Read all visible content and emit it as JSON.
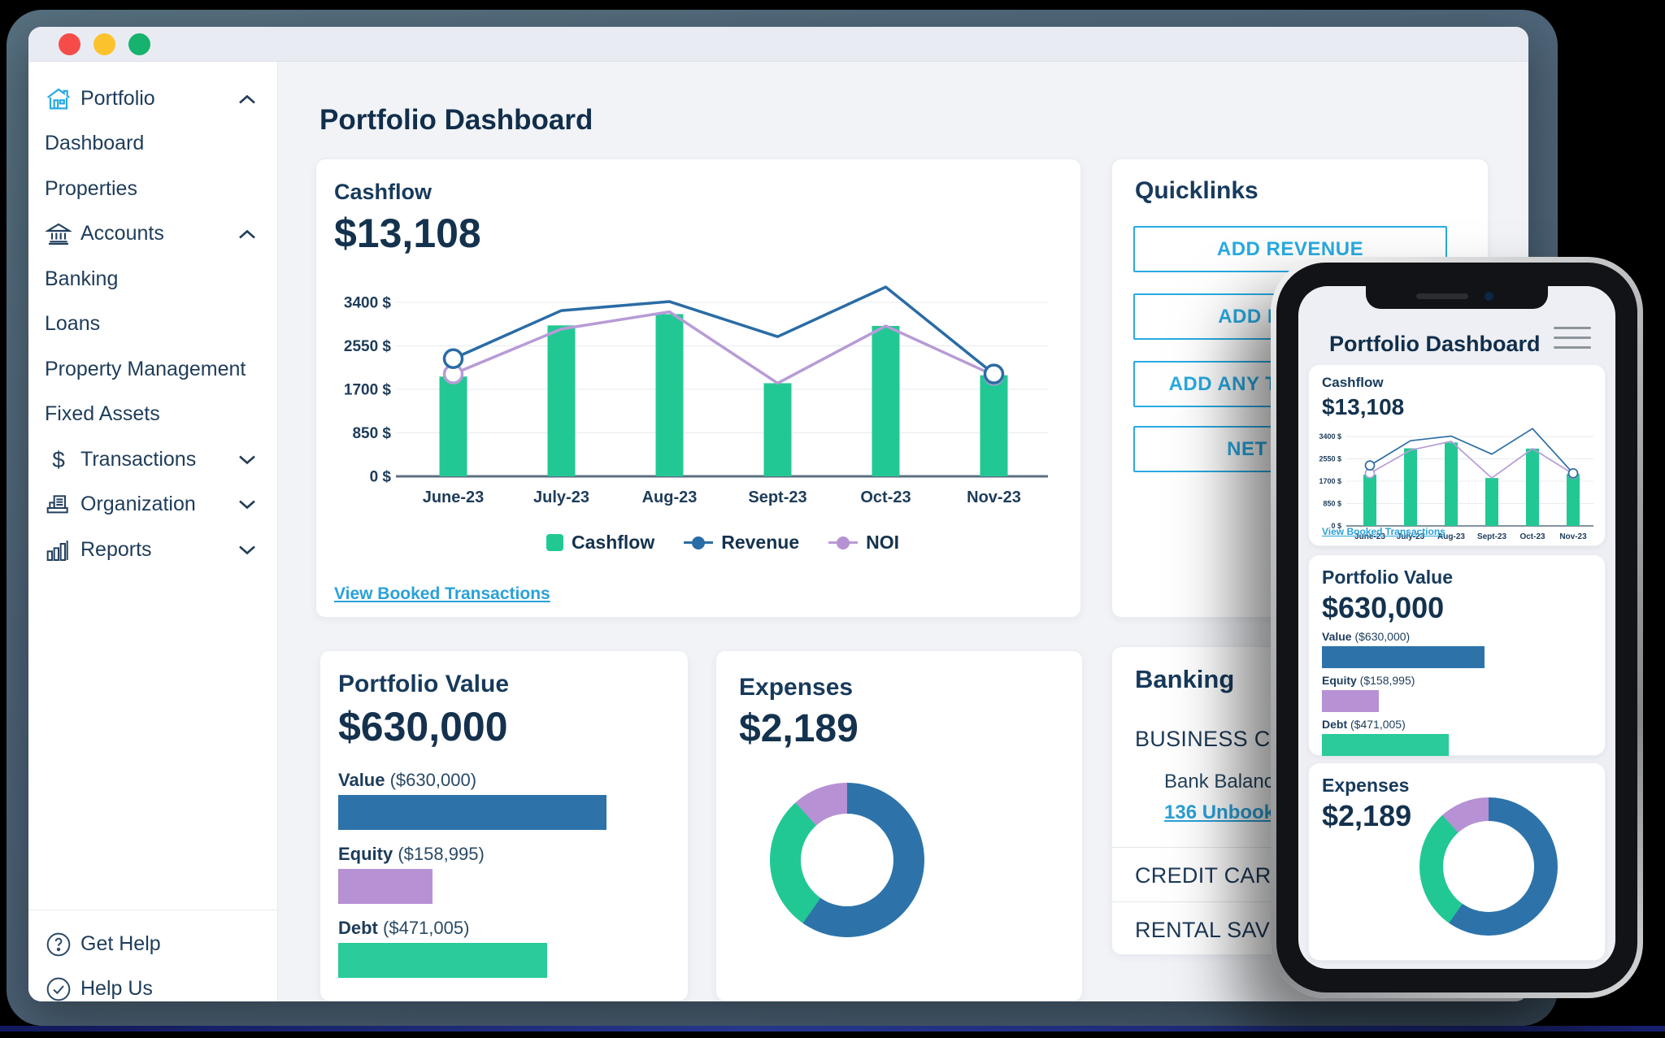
{
  "colors": {
    "cyan": "#29abe2",
    "link": "#2aa1d8",
    "green": "#22c894",
    "blue": "#2d73aa",
    "purple": "#b691d3",
    "line_blue": "#2a6ca5",
    "line_purple": "#b79bd6",
    "navy": "#1d3c5b",
    "heading": "#122f4c",
    "slate_frame": "#4d6377"
  },
  "window": {
    "traffic_lights": {
      "close": "#f64c49",
      "minimize": "#fcc22d",
      "zoom": "#17b26d"
    }
  },
  "sidebar": {
    "items": [
      {
        "label": "Portfolio",
        "icon": "house-icon",
        "chevron": "up"
      },
      {
        "label": "Dashboard"
      },
      {
        "label": "Properties"
      },
      {
        "label": "Accounts",
        "icon": "bank-icon",
        "chevron": "up"
      },
      {
        "label": "Banking"
      },
      {
        "label": "Loans"
      },
      {
        "label": "Property Management"
      },
      {
        "label": "Fixed Assets"
      },
      {
        "label": "Transactions",
        "icon": "dollar-icon",
        "chevron": "down"
      },
      {
        "label": "Organization",
        "icon": "organization-icon",
        "chevron": "down"
      },
      {
        "label": "Reports",
        "icon": "bar-chart-icon",
        "chevron": "down"
      }
    ],
    "footer": [
      {
        "label": "Get Help",
        "icon": "question-circle-icon"
      },
      {
        "label": "Help Us",
        "icon": "check-circle-icon"
      }
    ]
  },
  "page_title": "Portfolio Dashboard",
  "cashflow": {
    "title": "Cashflow",
    "value": "$13,108",
    "link": "View Booked Transactions",
    "legend": [
      {
        "label": "Cashflow"
      },
      {
        "label": "Revenue"
      },
      {
        "label": "NOI"
      }
    ]
  },
  "quicklinks": {
    "title": "Quicklinks",
    "buttons": [
      {
        "label": "ADD REVENUE"
      },
      {
        "label": "ADD EXPENSE"
      },
      {
        "label": "ADD ANY TRANSACTION"
      },
      {
        "label": "NET INCOME"
      }
    ]
  },
  "portfolio_value": {
    "title": "Portfolio Value",
    "value": "$630,000",
    "bars": [
      {
        "label": "Value",
        "amount": "($630,000)"
      },
      {
        "label": "Equity",
        "amount": "($158,995)"
      },
      {
        "label": "Debt",
        "amount": "($471,005)"
      }
    ]
  },
  "expenses": {
    "title": "Expenses",
    "value": "$2,189"
  },
  "banking": {
    "title": "Banking",
    "accounts": [
      {
        "name": "BUSINESS CHECKING",
        "balance": "Bank Balance: $1",
        "link": "136 Unbooked Transactions"
      },
      {
        "name": "CREDIT CARD"
      },
      {
        "name": "RENTAL SAVINGS"
      }
    ]
  },
  "phone": {
    "title": "Portfolio Dashboard"
  },
  "chart_data": [
    {
      "type": "bar+line combo",
      "title": "Cashflow",
      "categories": [
        "June-23",
        "July-23",
        "Aug-23",
        "Sept-23",
        "Oct-23",
        "Nov-23"
      ],
      "series": [
        {
          "name": "Cashflow",
          "type": "bar",
          "color": "#22c894",
          "values": [
            1950,
            2950,
            3170,
            1820,
            2940,
            1975
          ]
        },
        {
          "name": "Revenue",
          "type": "line",
          "color": "#2a6ca5",
          "values": [
            2300,
            3240,
            3415,
            2730,
            3700,
            2000
          ],
          "markers": [
            0,
            5
          ]
        },
        {
          "name": "NOI",
          "type": "line",
          "color": "#b79bd6",
          "values": [
            2000,
            2880,
            3215,
            1820,
            2940,
            1975
          ],
          "markers": [
            0,
            5
          ]
        }
      ],
      "yticks": [
        0,
        850,
        1700,
        2550,
        3400
      ],
      "ytick_labels": [
        "0 $",
        "850 $",
        "1700 $",
        "2550 $",
        "3400 $"
      ],
      "ylim": [
        0,
        3400
      ],
      "grid": true,
      "legend_position": "bottom"
    },
    {
      "type": "bar",
      "title": "Portfolio Value",
      "orientation": "horizontal",
      "categories": [
        "Value",
        "Equity",
        "Debt"
      ],
      "values": [
        630000,
        158995,
        471005
      ],
      "width_pct": [
        100,
        35,
        78
      ],
      "colors": [
        "#2d73aa",
        "#b691d3",
        "#2bcb9b"
      ]
    },
    {
      "type": "pie",
      "title": "Expenses",
      "total": "$2,189",
      "slices": [
        {
          "name": "blue",
          "color": "#2d73aa",
          "deg": 215,
          "pct": 60
        },
        {
          "name": "green",
          "color": "#22c894",
          "deg": 103,
          "pct": 28
        },
        {
          "name": "purple",
          "color": "#b691d3",
          "deg": 42,
          "pct": 12
        }
      ]
    }
  ]
}
